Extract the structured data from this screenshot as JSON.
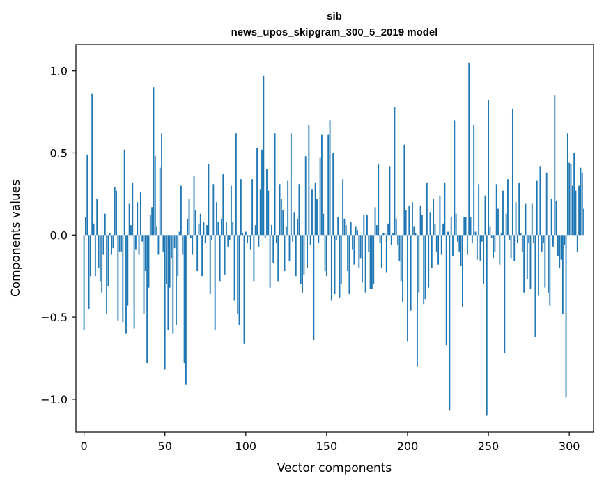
{
  "chart_data": {
    "type": "bar",
    "title_line1": "sib",
    "title_line2": "news_upos_skipgram_300_5_2019 model",
    "xlabel": "Vector components",
    "ylabel": "Components values",
    "xlim": [
      -5,
      315
    ],
    "ylim": [
      -1.2,
      1.16
    ],
    "xticks": [
      0,
      50,
      100,
      150,
      200,
      250,
      300
    ],
    "xtick_labels": [
      "0",
      "50",
      "100",
      "150",
      "200",
      "250",
      "300"
    ],
    "yticks": [
      -1.0,
      -0.5,
      0.0,
      0.5,
      1.0
    ],
    "ytick_labels": [
      "−1.0",
      "−0.5",
      "0.0",
      "0.5",
      "1.0"
    ],
    "bar_color": "#1f77b4",
    "values": [
      -0.58,
      0.11,
      0.49,
      -0.45,
      -0.25,
      0.86,
      0.07,
      -0.25,
      0.22,
      -0.2,
      -0.28,
      -0.35,
      -0.12,
      0.13,
      -0.48,
      -0.31,
      0.01,
      -0.12,
      -0.08,
      0.29,
      0.27,
      -0.52,
      -0.1,
      -0.1,
      -0.53,
      0.52,
      -0.6,
      -0.43,
      0.19,
      0.06,
      0.32,
      -0.57,
      -0.09,
      0.2,
      -0.12,
      0.26,
      -0.04,
      -0.48,
      -0.22,
      -0.78,
      -0.32,
      0.12,
      0.17,
      0.9,
      0.48,
      0.05,
      -0.12,
      0.41,
      0.62,
      -0.1,
      -0.82,
      -0.3,
      -0.58,
      -0.32,
      -0.14,
      -0.6,
      -0.08,
      -0.55,
      -0.25,
      0.02,
      0.3,
      -0.12,
      -0.78,
      -0.91,
      0.1,
      0.22,
      -0.02,
      -0.12,
      0.36,
      0.15,
      -0.22,
      0.07,
      0.13,
      -0.25,
      0.08,
      -0.05,
      0.06,
      0.43,
      -0.36,
      -0.03,
      0.31,
      -0.58,
      0.2,
      0.08,
      -0.28,
      0.1,
      0.37,
      -0.24,
      0.08,
      -0.07,
      -0.03,
      0.3,
      0.08,
      -0.4,
      0.62,
      -0.48,
      -0.55,
      0.34,
      0.01,
      -0.66,
      0.02,
      -0.05,
      -0.01,
      -0.09,
      0.34,
      -0.28,
      0.06,
      0.53,
      -0.07,
      0.28,
      0.52,
      0.97,
      -0.02,
      0.4,
      0.27,
      -0.32,
      0.06,
      -0.17,
      0.62,
      -0.05,
      -0.28,
      0.31,
      0.22,
      0.15,
      -0.22,
      0.05,
      0.33,
      -0.16,
      0.62,
      -0.04,
      0.14,
      -0.25,
      0.1,
      0.31,
      -0.3,
      -0.35,
      -0.24,
      0.48,
      -0.2,
      0.67,
      -0.06,
      0.28,
      -0.64,
      0.32,
      0.22,
      -0.05,
      0.47,
      0.61,
      0.13,
      -0.22,
      -0.25,
      0.61,
      0.7,
      -0.4,
      0.5,
      -0.36,
      -0.03,
      0.11,
      -0.38,
      -0.3,
      0.34,
      0.1,
      0.06,
      -0.22,
      -0.36,
      0.08,
      -0.09,
      -0.18,
      0.05,
      0.03,
      -0.2,
      -0.14,
      -0.29,
      0.12,
      -0.35,
      0.12,
      -0.1,
      -0.33,
      -0.33,
      -0.3,
      0.17,
      0.06,
      0.43,
      -0.05,
      -0.2,
      0.01,
      0.01,
      -0.23,
      0.07,
      0.42,
      -0.06,
      0.01,
      0.78,
      0.1,
      -0.06,
      -0.16,
      -0.28,
      -0.41,
      0.55,
      0.15,
      -0.65,
      0.18,
      -0.46,
      0.2,
      0.05,
      0.01,
      -0.8,
      -0.35,
      0.18,
      0.12,
      -0.42,
      -0.39,
      0.32,
      -0.32,
      0.14,
      -0.2,
      0.22,
      0.07,
      -0.1,
      -0.18,
      0.24,
      -0.12,
      0.07,
      0.32,
      -0.67,
      0.02,
      -1.07,
      0.11,
      -0.13,
      0.7,
      0.13,
      -0.04,
      -0.1,
      -0.19,
      -0.44,
      0.11,
      0.11,
      -0.12,
      1.05,
      0.11,
      -0.05,
      0.67,
      0.02,
      -0.15,
      0.31,
      -0.16,
      -0.04,
      -0.3,
      0.24,
      -1.1,
      0.82,
      0.05,
      -0.02,
      -0.14,
      -0.1,
      0.31,
      0.16,
      -0.18,
      0.01,
      0.27,
      -0.72,
      0.13,
      0.34,
      -0.03,
      -0.14,
      0.77,
      -0.16,
      0.2,
      -0.05,
      0.32,
      0.01,
      -0.1,
      -0.35,
      0.19,
      -0.27,
      -0.05,
      -0.33,
      0.19,
      -0.05,
      -0.62,
      0.33,
      -0.37,
      0.42,
      -0.1,
      -0.05,
      -0.32,
      0.38,
      -0.35,
      -0.43,
      0.22,
      -0.07,
      0.85,
      0.21,
      -0.13,
      -0.2,
      -0.15,
      -0.48,
      -0.06,
      -0.99,
      0.62,
      0.44,
      0.43,
      0.3,
      0.5,
      0.27,
      -0.1,
      0.3,
      0.41,
      0.38,
      0.16
    ]
  }
}
